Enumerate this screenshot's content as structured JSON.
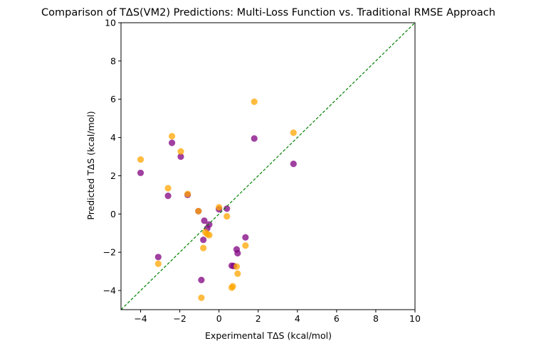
{
  "chart_data": {
    "type": "scatter",
    "title": "Comparison of TΔS(VM2) Predictions: Multi-Loss Function vs. Traditional RMSE Approach",
    "xlabel": "Experimental TΔS (kcal/mol)",
    "ylabel": "Predicted TΔS (kcal/mol)",
    "xlim": [
      -5,
      10
    ],
    "ylim": [
      -5,
      10
    ],
    "xticks": [
      -4,
      -2,
      0,
      2,
      4,
      6,
      8,
      10
    ],
    "yticks": [
      -4,
      -2,
      0,
      2,
      4,
      6,
      8,
      10
    ],
    "grid": false,
    "legend": "none",
    "reference_line": {
      "x": [
        -5,
        10
      ],
      "y": [
        -5,
        10
      ],
      "color": "#008000",
      "style": "dashed"
    },
    "series": [
      {
        "color": "#800080",
        "points": [
          [
            -4.0,
            2.15
          ],
          [
            -3.1,
            -2.25
          ],
          [
            -2.6,
            0.95
          ],
          [
            -2.4,
            3.72
          ],
          [
            -1.95,
            3.0
          ],
          [
            -1.6,
            1.0
          ],
          [
            -1.05,
            0.15
          ],
          [
            -0.9,
            -3.45
          ],
          [
            -0.8,
            -1.35
          ],
          [
            -0.75,
            -0.35
          ],
          [
            -0.6,
            -0.75
          ],
          [
            -0.5,
            -0.55
          ],
          [
            0.0,
            0.25
          ],
          [
            0.4,
            0.28
          ],
          [
            0.65,
            -2.7
          ],
          [
            0.75,
            -2.72
          ],
          [
            0.9,
            -1.85
          ],
          [
            0.95,
            -2.05
          ],
          [
            1.35,
            -1.22
          ],
          [
            1.8,
            3.95
          ],
          [
            3.8,
            2.62
          ]
        ]
      },
      {
        "color": "#FFA500",
        "points": [
          [
            -4.0,
            2.85
          ],
          [
            -3.1,
            -2.6
          ],
          [
            -2.6,
            1.35
          ],
          [
            -2.4,
            4.07
          ],
          [
            -1.95,
            3.27
          ],
          [
            -1.6,
            1.05
          ],
          [
            -1.05,
            0.15
          ],
          [
            -0.9,
            -4.38
          ],
          [
            -0.8,
            -1.78
          ],
          [
            -0.7,
            -0.95
          ],
          [
            -0.6,
            -1.05
          ],
          [
            -0.5,
            -1.1
          ],
          [
            0.0,
            0.35
          ],
          [
            0.4,
            -0.12
          ],
          [
            0.65,
            -3.85
          ],
          [
            0.7,
            -3.78
          ],
          [
            0.9,
            -2.75
          ],
          [
            0.95,
            -3.12
          ],
          [
            1.35,
            -1.65
          ],
          [
            1.8,
            5.87
          ],
          [
            3.8,
            4.25
          ]
        ]
      }
    ]
  }
}
